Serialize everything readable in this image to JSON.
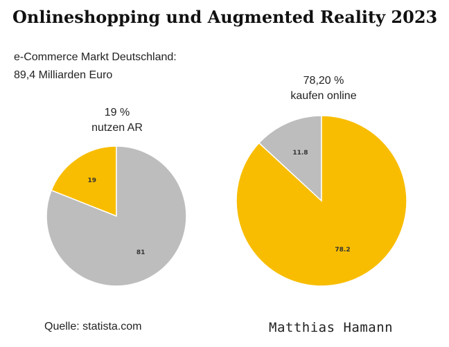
{
  "title": "Onlineshopping und Augmented Reality 2023",
  "market": {
    "line1": "e-Commerce Markt Deutschland:",
    "line2": "89,4 Milliarden Euro"
  },
  "source": "Quelle: statista.com",
  "author": "Matthias Hamann",
  "colors": {
    "gray": "#bdbdbd",
    "yellow": "#f8bd00"
  },
  "chart_data": [
    {
      "type": "pie",
      "caption": [
        "19 %",
        "nutzen AR"
      ],
      "slices": [
        {
          "value": 19,
          "label": "19",
          "color": "#f8bd00"
        },
        {
          "value": 81,
          "label": "81",
          "color": "#bdbdbd"
        }
      ]
    },
    {
      "type": "pie",
      "caption": [
        "78,20 %",
        "kaufen online"
      ],
      "slices": [
        {
          "value": 11.8,
          "label": "11.8",
          "color": "#bdbdbd"
        },
        {
          "value": 78.2,
          "label": "78.2",
          "color": "#f8bd00"
        }
      ]
    }
  ]
}
